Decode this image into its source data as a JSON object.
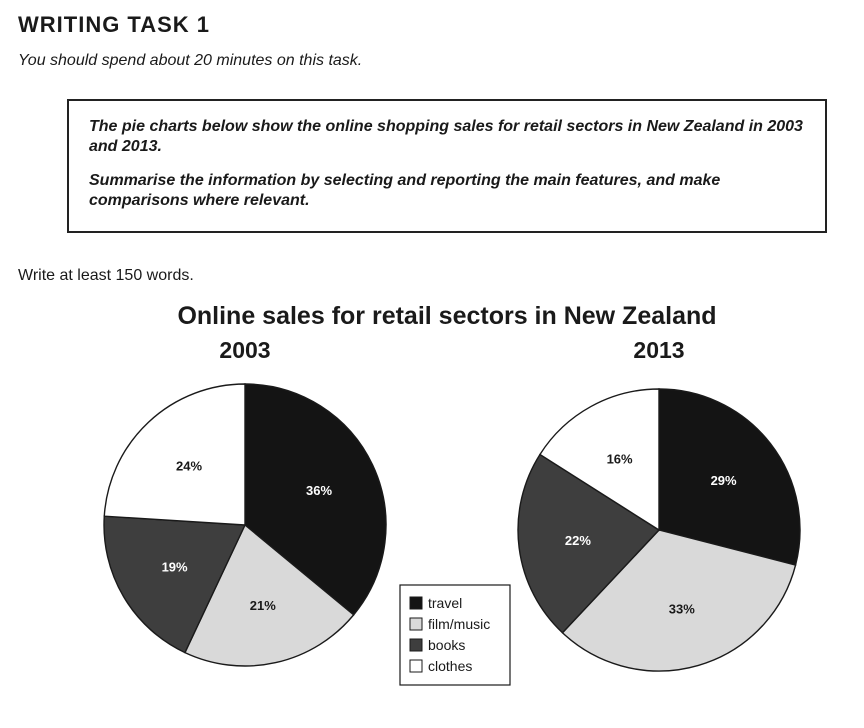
{
  "header": {
    "title": "WRITING TASK 1",
    "time_note": "You should spend about 20 minutes on this task."
  },
  "prompt": {
    "line1": "The pie charts below show the online shopping sales for retail sectors in New Zealand in 2003 and 2013.",
    "line2": "Summarise the information by selecting and reporting the main features, and make comparisons where relevant."
  },
  "word_limit": "Write at least 150 words.",
  "chart_data": {
    "type": "pie",
    "title": "Online sales for retail sectors in New Zealand",
    "categories": [
      "travel",
      "film/music",
      "books",
      "clothes"
    ],
    "colors": [
      "#141414",
      "#d9d9d9",
      "#3e3e3e",
      "#ffffff"
    ],
    "label_colors": [
      "#ffffff",
      "#1a1a1a",
      "#ffffff",
      "#1a1a1a"
    ],
    "legend_placement": "bottom-center",
    "pies": [
      {
        "name": "2003",
        "values": [
          36,
          21,
          19,
          24
        ],
        "labels": [
          "36%",
          "21%",
          "19%",
          "24%"
        ]
      },
      {
        "name": "2013",
        "values": [
          29,
          33,
          22,
          16
        ],
        "labels": [
          "29%",
          "33%",
          "22%",
          "16%"
        ]
      }
    ]
  }
}
